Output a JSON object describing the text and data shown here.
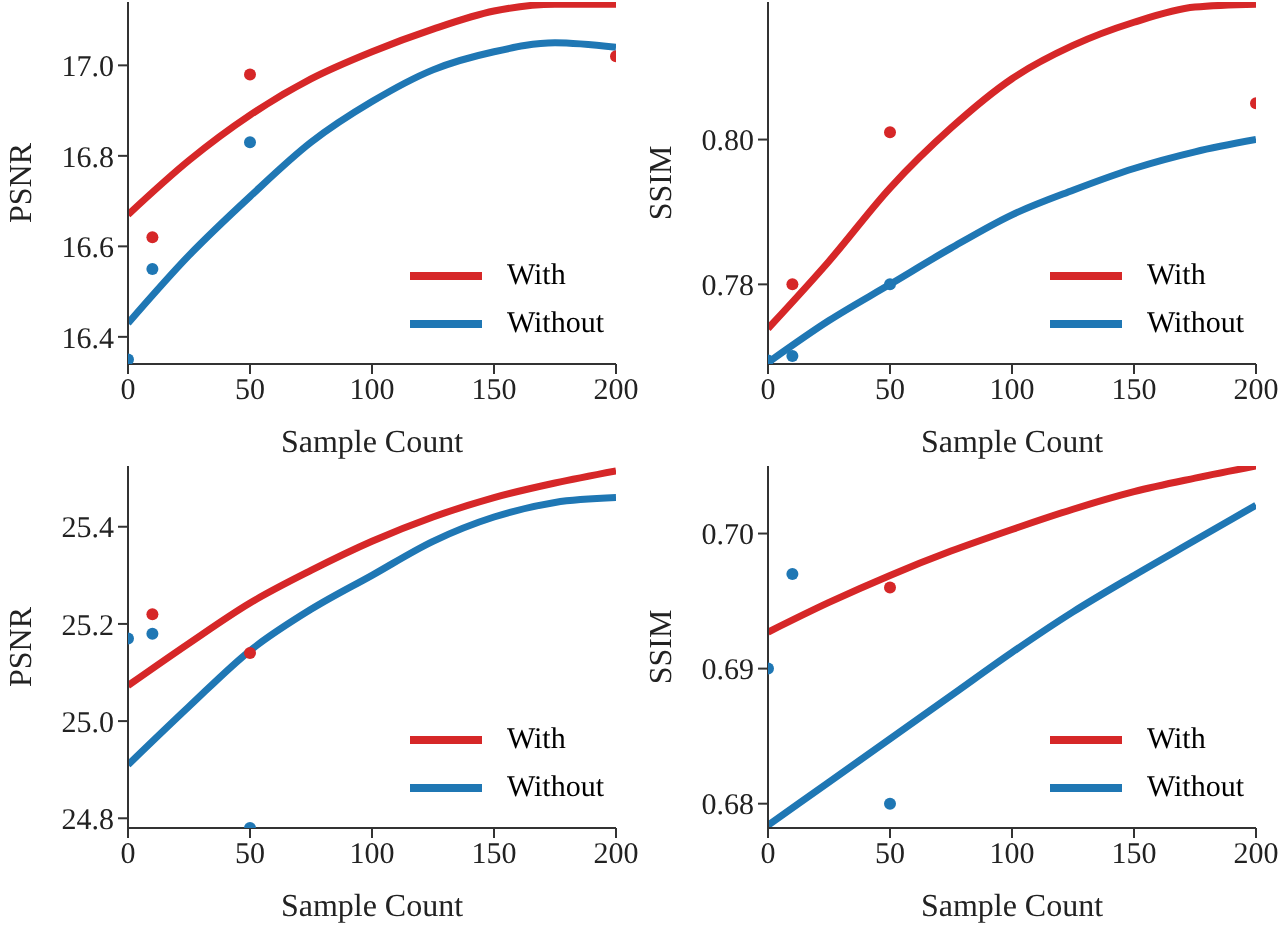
{
  "chart_data": [
    {
      "type": "line",
      "xlabel": "Sample Count",
      "ylabel": "PSNR",
      "xlim": [
        0,
        200
      ],
      "xticks": [
        0,
        50,
        100,
        150,
        200
      ],
      "ylim": [
        16.34,
        17.14
      ],
      "yticks": [
        16.4,
        16.6,
        16.8,
        {
          "value": 17.0,
          "label": "17.0"
        }
      ],
      "legend": "bottom right",
      "grid": false,
      "series": [
        {
          "name": "With",
          "color": "#d62728",
          "x": [
            0,
            25,
            50,
            75,
            100,
            125,
            150,
            175,
            200
          ],
          "values": [
            16.67,
            16.79,
            16.89,
            16.97,
            17.03,
            17.08,
            17.12,
            17.135,
            17.135
          ]
        },
        {
          "name": "Without",
          "color": "#1f77b4",
          "x": [
            0,
            25,
            50,
            75,
            100,
            125,
            150,
            175,
            200
          ],
          "values": [
            16.43,
            16.58,
            16.71,
            16.83,
            16.92,
            16.99,
            17.03,
            17.05,
            17.04
          ]
        },
        {
          "type": "scatter",
          "marker": "circle",
          "color": "#d62728",
          "x": [
            10,
            50,
            200
          ],
          "values": [
            16.62,
            16.98,
            17.02
          ]
        },
        {
          "type": "scatter",
          "marker": "circle",
          "color": "#1f77b4",
          "x": [
            0,
            10,
            50
          ],
          "values": [
            16.35,
            16.55,
            16.83
          ]
        }
      ]
    },
    {
      "type": "line",
      "xlabel": "Sample Count",
      "ylabel": "SSIM",
      "xlim": [
        0,
        200
      ],
      "xticks": [
        0,
        50,
        100,
        150,
        200
      ],
      "ylim": [
        0.769,
        0.819
      ],
      "yticks": [
        0.78,
        {
          "value": 0.8,
          "label": "0.80"
        }
      ],
      "legend": "bottom right",
      "grid": false,
      "series": [
        {
          "name": "With",
          "color": "#d62728",
          "x": [
            0,
            25,
            50,
            75,
            100,
            125,
            150,
            175,
            200
          ],
          "values": [
            0.7739,
            0.7832,
            0.7933,
            0.8016,
            0.8084,
            0.813,
            0.8162,
            0.8183,
            0.8187
          ]
        },
        {
          "name": "Without",
          "color": "#1f77b4",
          "x": [
            0,
            25,
            50,
            75,
            100,
            125,
            150,
            175,
            200
          ],
          "values": [
            0.7692,
            0.775,
            0.78,
            0.785,
            0.7896,
            0.793,
            0.796,
            0.7983,
            0.8
          ]
        },
        {
          "type": "scatter",
          "marker": "circle",
          "color": "#d62728",
          "x": [
            10,
            50,
            200
          ],
          "values": [
            0.78,
            0.801,
            0.805
          ]
        },
        {
          "type": "scatter",
          "marker": "circle",
          "color": "#1f77b4",
          "x": [
            0,
            10,
            50
          ],
          "values": [
            0.7695,
            0.7701,
            0.78
          ]
        }
      ]
    },
    {
      "type": "line",
      "xlabel": "Sample Count",
      "ylabel": "PSNR",
      "xlim": [
        0,
        200
      ],
      "xticks": [
        0,
        50,
        100,
        150,
        200
      ],
      "ylim": [
        24.78,
        25.525
      ],
      "yticks": [
        24.8,
        {
          "value": 25.0,
          "label": "25.0"
        },
        25.2,
        25.4
      ],
      "legend": "bottom right",
      "grid": false,
      "series": [
        {
          "name": "With",
          "color": "#d62728",
          "x": [
            0,
            25,
            50,
            75,
            100,
            125,
            150,
            175,
            200
          ],
          "values": [
            25.073,
            25.16,
            25.243,
            25.31,
            25.37,
            25.42,
            25.46,
            25.49,
            25.515
          ]
        },
        {
          "name": "Without",
          "color": "#1f77b4",
          "x": [
            0,
            25,
            50,
            75,
            100,
            125,
            150,
            175,
            200
          ],
          "values": [
            24.91,
            25.03,
            25.145,
            25.23,
            25.3,
            25.37,
            25.42,
            25.45,
            25.46
          ]
        },
        {
          "type": "scatter",
          "marker": "circle",
          "color": "#d62728",
          "x": [
            10,
            50
          ],
          "values": [
            25.22,
            25.14
          ]
        },
        {
          "type": "scatter",
          "marker": "circle",
          "color": "#1f77b4",
          "x": [
            0,
            10,
            50
          ],
          "values": [
            25.17,
            25.18,
            24.78
          ]
        }
      ]
    },
    {
      "type": "line",
      "xlabel": "Sample Count",
      "ylabel": "SSIM",
      "xlim": [
        0,
        200
      ],
      "xticks": [
        0,
        50,
        100,
        150,
        200
      ],
      "ylim": [
        0.6782,
        0.705
      ],
      "yticks": [
        0.68,
        0.69,
        {
          "value": 0.7,
          "label": "0.70"
        }
      ],
      "legend": "bottom right",
      "grid": false,
      "series": [
        {
          "name": "With",
          "color": "#d62728",
          "x": [
            0,
            25,
            50,
            75,
            100,
            125,
            150,
            175,
            200
          ],
          "values": [
            0.6927,
            0.6949,
            0.6969,
            0.6987,
            0.7003,
            0.7018,
            0.7031,
            0.7041,
            0.705
          ]
        },
        {
          "name": "Without",
          "color": "#1f77b4",
          "x": [
            0,
            25,
            50,
            75,
            100,
            125,
            150,
            175,
            200
          ],
          "values": [
            0.6784,
            0.6816,
            0.6848,
            0.688,
            0.6912,
            0.6942,
            0.6969,
            0.6995,
            0.7021
          ]
        },
        {
          "type": "scatter",
          "marker": "circle",
          "color": "#d62728",
          "x": [
            50
          ],
          "values": [
            0.696
          ]
        },
        {
          "type": "scatter",
          "marker": "circle",
          "color": "#1f77b4",
          "x": [
            0,
            10,
            50
          ],
          "values": [
            0.69,
            0.697,
            0.68
          ]
        }
      ]
    }
  ]
}
